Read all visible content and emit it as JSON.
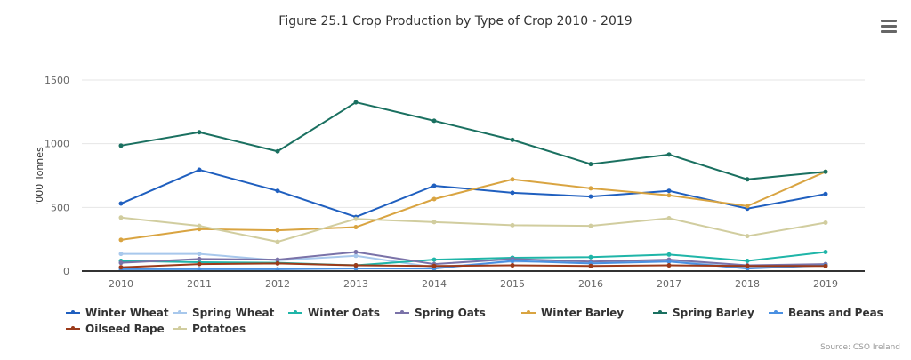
{
  "menu": {
    "icon": "hamburger-menu-icon"
  },
  "source": "Source: CSO Ireland",
  "chart_data": {
    "type": "line",
    "title": "Figure 25.1 Crop Production by Type of Crop 2010 - 2019",
    "xlabel": "",
    "ylabel": "'000 Tonnes",
    "x": [
      "2010",
      "2011",
      "2012",
      "2013",
      "2014",
      "2015",
      "2016",
      "2017",
      "2018",
      "2019"
    ],
    "ylim": [
      0,
      1500
    ],
    "yticks": [
      0,
      500,
      1000,
      1500
    ],
    "grid": true,
    "legend_position": "bottom",
    "series": [
      {
        "name": "Winter Wheat",
        "color": "#1f5fbf",
        "values": [
          530,
          795,
          630,
          425,
          670,
          615,
          585,
          630,
          490,
          605
        ]
      },
      {
        "name": "Spring Wheat",
        "color": "#a8c8ec",
        "values": [
          135,
          135,
          85,
          120,
          30,
          75,
          70,
          80,
          30,
          45
        ]
      },
      {
        "name": "Winter Oats",
        "color": "#1fb5a8",
        "values": [
          80,
          70,
          65,
          45,
          90,
          105,
          110,
          130,
          80,
          150
        ]
      },
      {
        "name": "Spring Oats",
        "color": "#7a72a8",
        "values": [
          65,
          95,
          90,
          150,
          55,
          95,
          75,
          90,
          45,
          55
        ]
      },
      {
        "name": "Winter Barley",
        "color": "#d9a441",
        "values": [
          245,
          330,
          320,
          345,
          565,
          720,
          650,
          595,
          510,
          780
        ]
      },
      {
        "name": "Spring Barley",
        "color": "#1a7060",
        "values": [
          985,
          1090,
          940,
          1325,
          1180,
          1030,
          840,
          915,
          720,
          780
        ]
      },
      {
        "name": "Beans and Peas",
        "color": "#4a90e2",
        "values": [
          15,
          15,
          15,
          20,
          20,
          80,
          60,
          75,
          20,
          45
        ]
      },
      {
        "name": "Oilseed Rape",
        "color": "#9b3a1a",
        "values": [
          30,
          55,
          60,
          45,
          40,
          45,
          40,
          45,
          40,
          40
        ]
      },
      {
        "name": "Potatoes",
        "color": "#d1cd9f",
        "values": [
          420,
          355,
          230,
          410,
          385,
          360,
          355,
          415,
          275,
          380
        ]
      }
    ]
  }
}
